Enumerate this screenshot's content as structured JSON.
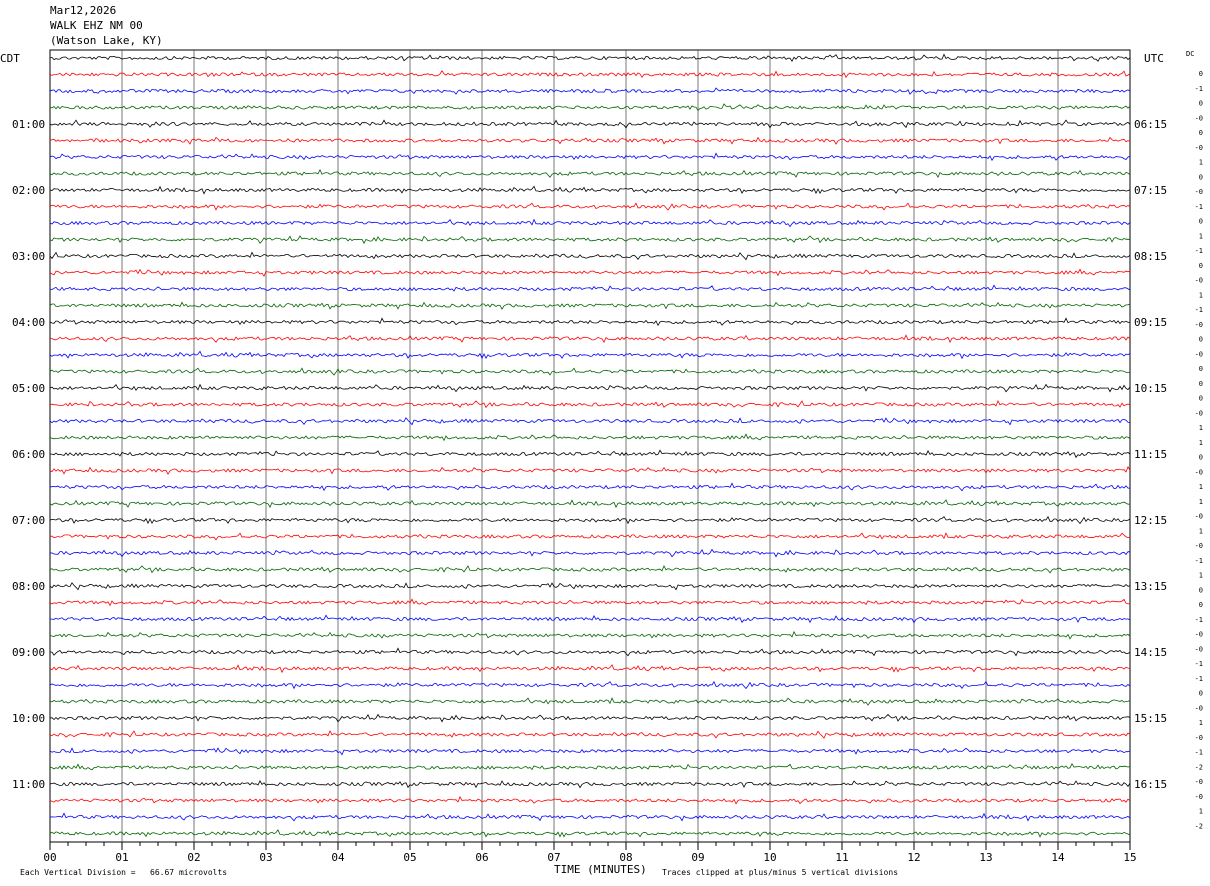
{
  "header": {
    "date": "Mar12,2026",
    "station": "WALK EHZ NM 00",
    "location": "(Watson Lake, KY)"
  },
  "left_label": "CDT",
  "right_label": "UTC",
  "dc_label": "DC",
  "chart_data": {
    "type": "line",
    "title": "WALK EHZ NM 00",
    "xlabel": "TIME (MINUTES)",
    "xlim": [
      0,
      15
    ],
    "x_ticks": [
      "00",
      "01",
      "02",
      "03",
      "04",
      "05",
      "06",
      "07",
      "08",
      "09",
      "10",
      "11",
      "12",
      "13",
      "14",
      "15"
    ],
    "trace_colors": [
      "#000000",
      "#ff0000",
      "#0000ff",
      "#006400"
    ],
    "left_time_labels": [
      "01:00",
      "02:00",
      "03:00",
      "04:00",
      "05:00",
      "06:00",
      "07:00",
      "08:00",
      "09:00",
      "10:00",
      "11:00"
    ],
    "right_time_labels": [
      "06:15",
      "07:15",
      "08:15",
      "09:15",
      "10:15",
      "11:15",
      "12:15",
      "13:15",
      "14:15",
      "15:15",
      "16:15"
    ],
    "dc_offsets": [
      "0",
      "-1",
      "0",
      "-0",
      "0",
      "-0",
      "1",
      "0",
      "-0",
      "-1",
      "0",
      "1",
      "-1",
      "0",
      "-0",
      "1",
      "-1",
      "-0",
      "0",
      "-0",
      "0",
      "0",
      "0",
      "-0",
      "1",
      "1",
      "0",
      "-0",
      "1",
      "1",
      "-0",
      "1",
      "-0",
      "-1",
      "1",
      "0",
      "0",
      "-1",
      "-0",
      "-0",
      "-1",
      "-1",
      "0",
      "-0",
      "1",
      "-0",
      "-1",
      "-2",
      "-0",
      "-0",
      "1",
      "-2"
    ],
    "grid": true
  },
  "footer": {
    "scale_note": "Each Vertical Division =   66.67 microvolts",
    "clip_note": "Traces clipped at plus/minus 5 vertical divisions"
  }
}
